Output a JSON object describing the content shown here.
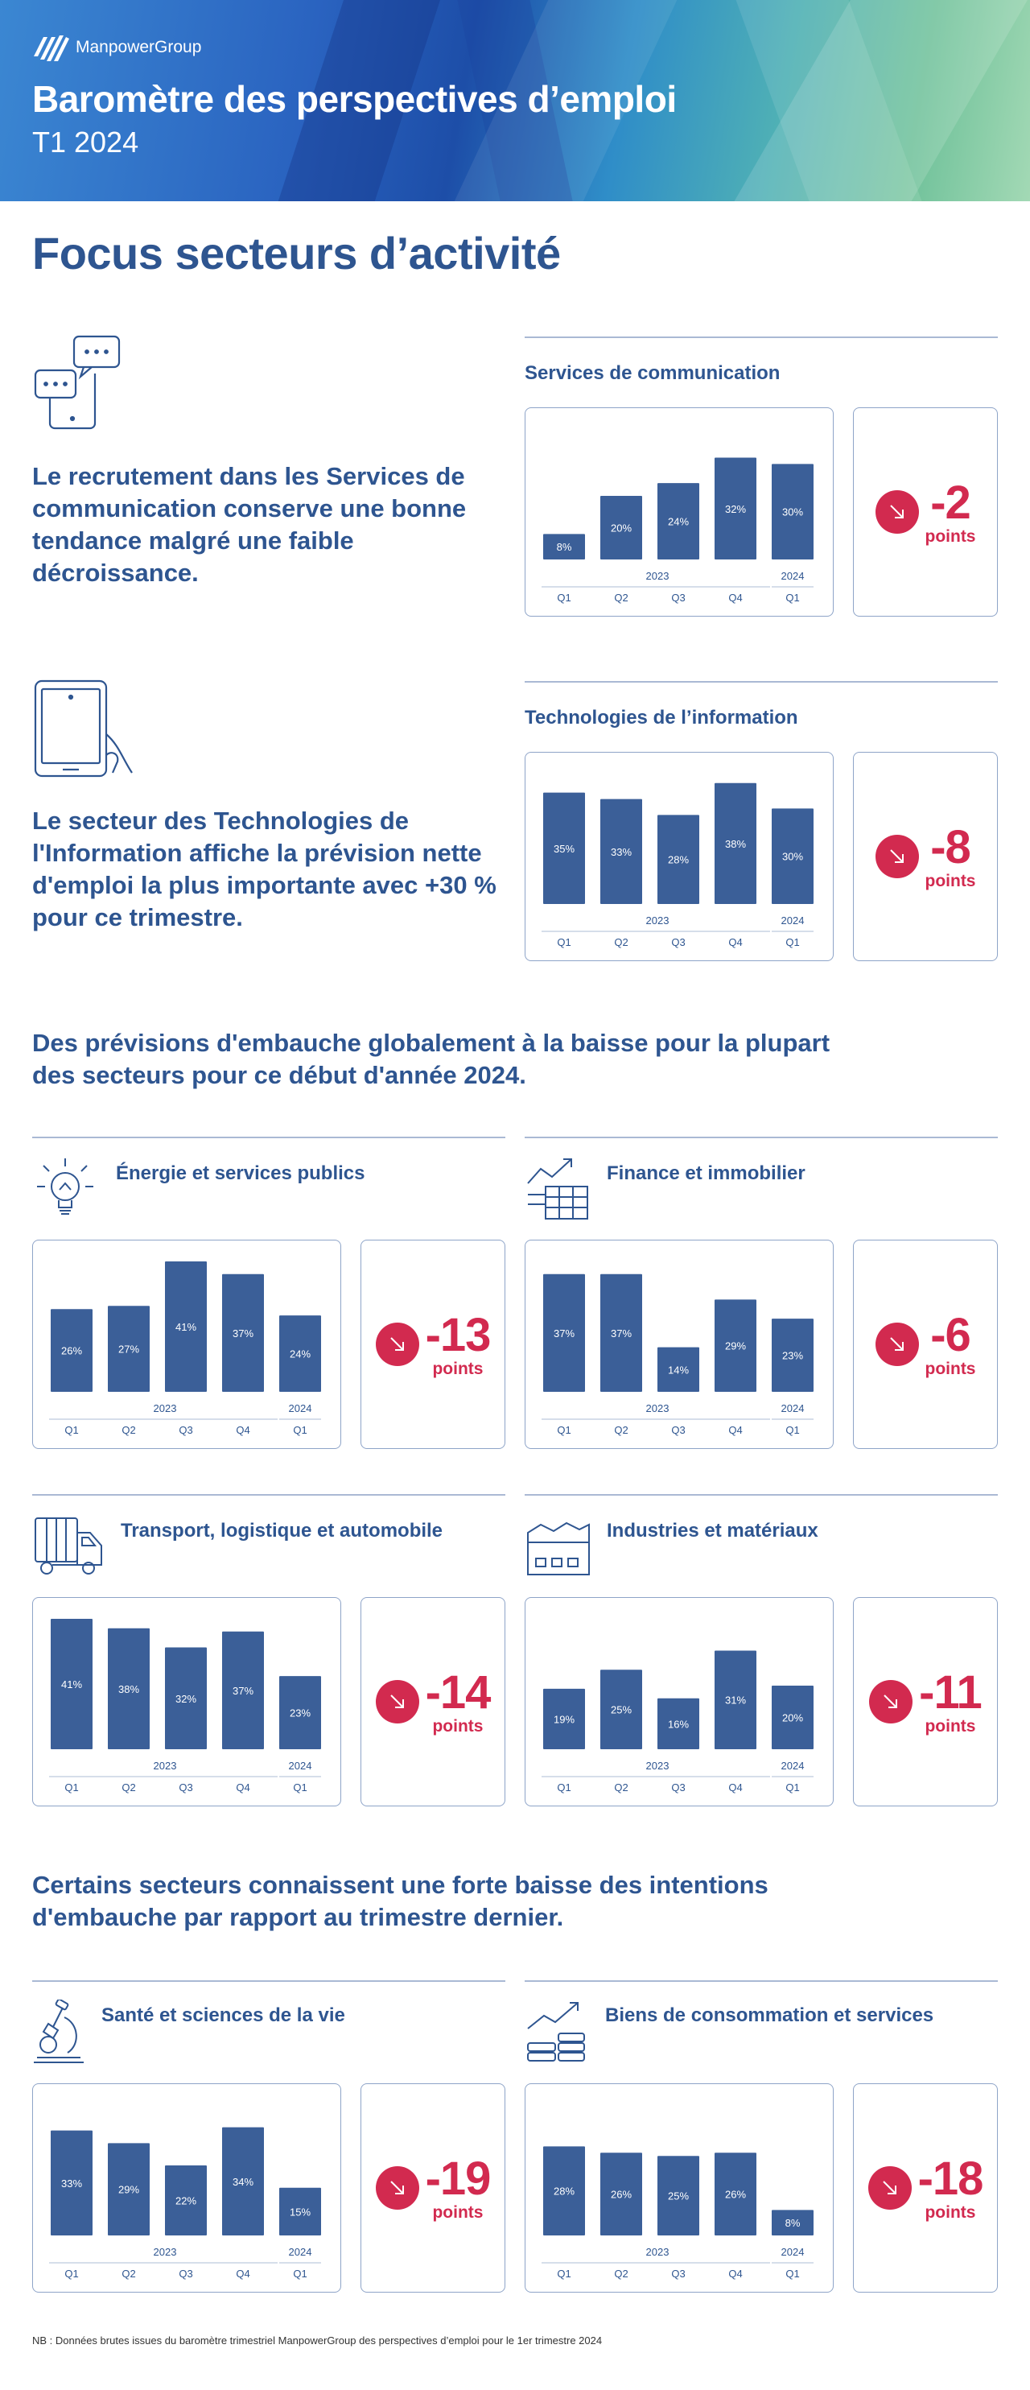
{
  "header": {
    "logo_text": "ManpowerGroup",
    "title": "Baromètre des perspectives d’emploi",
    "subtitle": "T1 2024"
  },
  "focus_title": "Focus secteurs d’activité",
  "intro_texts": [
    "Le recrutement dans les Services de communication conserve une bonne tendance malgré une faible décroissance.",
    "Le secteur des Technologies de l'Information affiche la prévision nette d'emploi la plus importante avec +30 % pour ce trimestre."
  ],
  "section_headings": [
    "Des prévisions d'embauche globalement à la baisse pour la plupart des secteurs pour ce début d'année 2024.",
    "Certains secteurs connaissent une forte baisse des intentions d'embauche par rapport au trimestre dernier."
  ],
  "icon_names": [
    "chat-phone-icon",
    "tablet-hand-icon",
    "lightbulb-icon",
    "growth-chart-icon",
    "truck-icon",
    "factory-icon",
    "microscope-icon",
    "coins-growth-icon"
  ],
  "colors": {
    "bar": "#3b5f98",
    "accent_red": "#d22a4f",
    "title_blue": "#2e5590",
    "border": "#8ea4c8"
  },
  "footnote": "NB : Données brutes issues du baromètre trimestriel ManpowerGroup des perspectives d’emploi pour le 1er trimestre 2024",
  "change_unit": "points",
  "chart_data": [
    {
      "type": "bar",
      "title": "Services de communication",
      "categories": [
        "Q1",
        "Q2",
        "Q3",
        "Q4",
        "Q1"
      ],
      "year_labels": [
        "2023",
        "2024"
      ],
      "values": [
        8,
        20,
        24,
        32,
        30
      ],
      "value_labels": [
        "8%",
        "20%",
        "24%",
        "32%",
        "30%"
      ],
      "change": "-2"
    },
    {
      "type": "bar",
      "title": "Technologies de l’information",
      "categories": [
        "Q1",
        "Q2",
        "Q3",
        "Q4",
        "Q1"
      ],
      "year_labels": [
        "2023",
        "2024"
      ],
      "values": [
        35,
        33,
        28,
        38,
        30
      ],
      "value_labels": [
        "35%",
        "33%",
        "28%",
        "38%",
        "30%"
      ],
      "change": "-8"
    },
    {
      "type": "bar",
      "title": "Énergie et services publics",
      "categories": [
        "Q1",
        "Q2",
        "Q3",
        "Q4",
        "Q1"
      ],
      "year_labels": [
        "2023",
        "2024"
      ],
      "values": [
        26,
        27,
        41,
        37,
        24
      ],
      "value_labels": [
        "26%",
        "27%",
        "41%",
        "37%",
        "24%"
      ],
      "change": "-13"
    },
    {
      "type": "bar",
      "title": "Finance et immobilier",
      "categories": [
        "Q1",
        "Q2",
        "Q3",
        "Q4",
        "Q1"
      ],
      "year_labels": [
        "2023",
        "2024"
      ],
      "values": [
        37,
        37,
        14,
        29,
        23
      ],
      "value_labels": [
        "37%",
        "37%",
        "14%",
        "29%",
        "23%"
      ],
      "change": "-6"
    },
    {
      "type": "bar",
      "title": "Transport, logistique et automobile",
      "categories": [
        "Q1",
        "Q2",
        "Q3",
        "Q4",
        "Q1"
      ],
      "year_labels": [
        "2023",
        "2024"
      ],
      "values": [
        41,
        38,
        32,
        37,
        23
      ],
      "value_labels": [
        "41%",
        "38%",
        "32%",
        "37%",
        "23%"
      ],
      "change": "-14"
    },
    {
      "type": "bar",
      "title": "Industries et matériaux",
      "categories": [
        "Q1",
        "Q2",
        "Q3",
        "Q4",
        "Q1"
      ],
      "year_labels": [
        "2023",
        "2024"
      ],
      "values": [
        19,
        25,
        16,
        31,
        20
      ],
      "value_labels": [
        "19%",
        "25%",
        "16%",
        "31%",
        "20%"
      ],
      "change": "-11"
    },
    {
      "type": "bar",
      "title": "Santé et sciences de la vie",
      "categories": [
        "Q1",
        "Q2",
        "Q3",
        "Q4",
        "Q1"
      ],
      "year_labels": [
        "2023",
        "2024"
      ],
      "values": [
        33,
        29,
        22,
        34,
        15
      ],
      "value_labels": [
        "33%",
        "29%",
        "22%",
        "34%",
        "15%"
      ],
      "change": "-19"
    },
    {
      "type": "bar",
      "title": "Biens de consommation et services",
      "categories": [
        "Q1",
        "Q2",
        "Q3",
        "Q4",
        "Q1"
      ],
      "year_labels": [
        "2023",
        "2024"
      ],
      "values": [
        28,
        26,
        25,
        26,
        8
      ],
      "value_labels": [
        "28%",
        "26%",
        "25%",
        "26%",
        "8%"
      ],
      "change": "-18"
    }
  ]
}
